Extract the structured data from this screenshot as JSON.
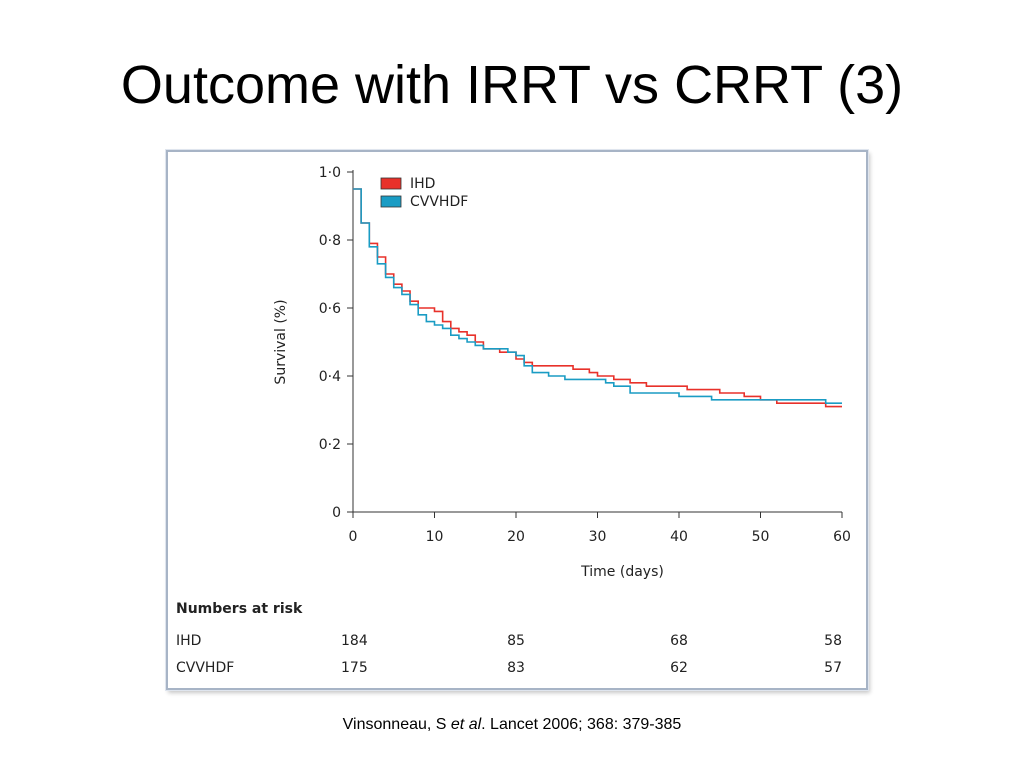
{
  "slide": {
    "title": "Outcome with IRRT vs CRRT (3)"
  },
  "citation": {
    "author": "Vinsonneau, S ",
    "etal": "et al",
    "rest": ".  Lancet 2006; 368: 379-385"
  },
  "colors": {
    "IHD": "#e8312a",
    "CVVHDF": "#1a9cc4",
    "frame": "#a7b4c6"
  },
  "chart_data": {
    "type": "line",
    "step": true,
    "xlabel": "Time (days)",
    "ylabel": "Survival (%)",
    "xlim": [
      0,
      60
    ],
    "ylim": [
      0,
      1.0
    ],
    "x_ticks": [
      "0",
      "10",
      "20",
      "30",
      "40",
      "50",
      "60"
    ],
    "y_ticks": [
      "0",
      "0·2",
      "0·4",
      "0·6",
      "0·8",
      "1·0"
    ],
    "legend_position": "top-left",
    "series": [
      {
        "name": "IHD",
        "color": "#e8312a",
        "points": [
          [
            0,
            0.95
          ],
          [
            1,
            0.85
          ],
          [
            2,
            0.79
          ],
          [
            3,
            0.75
          ],
          [
            4,
            0.7
          ],
          [
            5,
            0.67
          ],
          [
            6,
            0.65
          ],
          [
            7,
            0.62
          ],
          [
            8,
            0.6
          ],
          [
            9,
            0.6
          ],
          [
            10,
            0.59
          ],
          [
            11,
            0.56
          ],
          [
            12,
            0.54
          ],
          [
            13,
            0.53
          ],
          [
            14,
            0.52
          ],
          [
            15,
            0.5
          ],
          [
            16,
            0.48
          ],
          [
            17,
            0.48
          ],
          [
            18,
            0.47
          ],
          [
            19,
            0.47
          ],
          [
            20,
            0.45
          ],
          [
            21,
            0.44
          ],
          [
            22,
            0.43
          ],
          [
            25,
            0.43
          ],
          [
            27,
            0.42
          ],
          [
            29,
            0.41
          ],
          [
            30,
            0.4
          ],
          [
            32,
            0.39
          ],
          [
            34,
            0.38
          ],
          [
            36,
            0.37
          ],
          [
            38,
            0.37
          ],
          [
            41,
            0.36
          ],
          [
            43,
            0.36
          ],
          [
            44,
            0.36
          ],
          [
            45,
            0.35
          ],
          [
            48,
            0.34
          ],
          [
            50,
            0.33
          ],
          [
            52,
            0.32
          ],
          [
            55,
            0.32
          ],
          [
            57,
            0.32
          ],
          [
            58,
            0.31
          ],
          [
            60,
            0.31
          ]
        ]
      },
      {
        "name": "CVVHDF",
        "color": "#1a9cc4",
        "points": [
          [
            0,
            0.95
          ],
          [
            1,
            0.85
          ],
          [
            2,
            0.78
          ],
          [
            3,
            0.73
          ],
          [
            4,
            0.69
          ],
          [
            5,
            0.66
          ],
          [
            6,
            0.64
          ],
          [
            7,
            0.61
          ],
          [
            8,
            0.58
          ],
          [
            9,
            0.56
          ],
          [
            10,
            0.55
          ],
          [
            11,
            0.54
          ],
          [
            12,
            0.52
          ],
          [
            13,
            0.51
          ],
          [
            14,
            0.5
          ],
          [
            15,
            0.49
          ],
          [
            16,
            0.48
          ],
          [
            17,
            0.48
          ],
          [
            19,
            0.47
          ],
          [
            20,
            0.46
          ],
          [
            21,
            0.43
          ],
          [
            22,
            0.41
          ],
          [
            24,
            0.4
          ],
          [
            26,
            0.39
          ],
          [
            30,
            0.39
          ],
          [
            31,
            0.38
          ],
          [
            32,
            0.37
          ],
          [
            34,
            0.35
          ],
          [
            36,
            0.35
          ],
          [
            38,
            0.35
          ],
          [
            40,
            0.34
          ],
          [
            44,
            0.33
          ],
          [
            46,
            0.33
          ],
          [
            50,
            0.33
          ],
          [
            52,
            0.33
          ],
          [
            56,
            0.33
          ],
          [
            58,
            0.32
          ],
          [
            60,
            0.32
          ]
        ]
      }
    ],
    "numbers_at_risk": {
      "title": "Numbers at risk",
      "rows": [
        {
          "label": "IHD",
          "values": [
            "184",
            "85",
            "68",
            "58"
          ]
        },
        {
          "label": "CVVHDF",
          "values": [
            "175",
            "83",
            "62",
            "57"
          ]
        }
      ]
    }
  }
}
